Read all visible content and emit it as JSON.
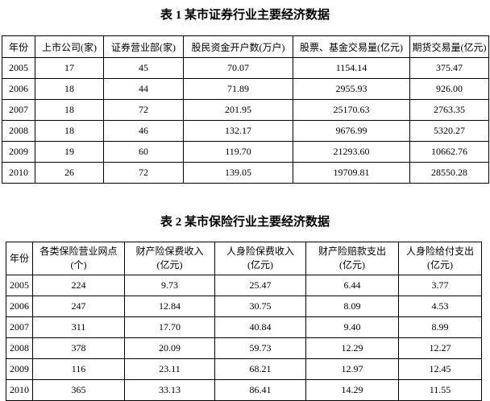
{
  "page": {
    "background_color": "#ffffff",
    "text_color": "#000000",
    "border_color": "#000000"
  },
  "chart_data": [
    {
      "type": "table",
      "title": "表 1 某市证券行业主要经济数据",
      "columns": [
        "年份",
        "上市公司(家)",
        "证券营业部(家)",
        "股民资金开户数(万户)",
        "股票、基金交易量(亿元)",
        "期货交易量(亿元)"
      ],
      "rows": [
        [
          "2005",
          "17",
          "45",
          "70.07",
          "1154.14",
          "375.47"
        ],
        [
          "2006",
          "18",
          "44",
          "71.89",
          "2955.93",
          "926.00"
        ],
        [
          "2007",
          "18",
          "72",
          "201.95",
          "25170.63",
          "2763.35"
        ],
        [
          "2008",
          "18",
          "46",
          "132.17",
          "9676.99",
          "5320.27"
        ],
        [
          "2009",
          "19",
          "60",
          "119.70",
          "21293.60",
          "10662.76"
        ],
        [
          "2010",
          "26",
          "72",
          "139.05",
          "19709.81",
          "28550.28"
        ]
      ]
    },
    {
      "type": "table",
      "title": "表 2 某市保险行业主要经济数据",
      "columns": [
        "年份",
        "各类保险营业网点(个)",
        "财产险保费收入(亿元)",
        "人身险保费收入(亿元)",
        "财产险赔款支出(亿元)",
        "人身险给付支出(亿元)"
      ],
      "rows": [
        [
          "2005",
          "224",
          "9.73",
          "25.47",
          "6.44",
          "3.77"
        ],
        [
          "2006",
          "247",
          "12.84",
          "30.75",
          "8.09",
          "4.53"
        ],
        [
          "2007",
          "311",
          "17.70",
          "40.84",
          "9.40",
          "8.99"
        ],
        [
          "2008",
          "378",
          "20.09",
          "59.73",
          "12.29",
          "12.27"
        ],
        [
          "2009",
          "116",
          "23.11",
          "68.21",
          "12.97",
          "12.45"
        ],
        [
          "2010",
          "365",
          "33.13",
          "86.41",
          "14.29",
          "11.55"
        ]
      ]
    }
  ],
  "table1": {
    "title": "表 1 某市证券行业主要经济数据",
    "headers": [
      "年份",
      "上市公司(家)",
      "证券营业部(家)",
      "股民资金开户数(万户)",
      "股票、基金交易量(亿元)",
      "期货交易量(亿元)"
    ],
    "rows": [
      [
        "2005",
        "17",
        "45",
        "70.07",
        "1154.14",
        "375.47"
      ],
      [
        "2006",
        "18",
        "44",
        "71.89",
        "2955.93",
        "926.00"
      ],
      [
        "2007",
        "18",
        "72",
        "201.95",
        "25170.63",
        "2763.35"
      ],
      [
        "2008",
        "18",
        "46",
        "132.17",
        "9676.99",
        "5320.27"
      ],
      [
        "2009",
        "19",
        "60",
        "119.70",
        "21293.60",
        "10662.76"
      ],
      [
        "2010",
        "26",
        "72",
        "139.05",
        "19709.81",
        "28550.28"
      ]
    ]
  },
  "table2": {
    "title": "表 2 某市保险行业主要经济数据",
    "headers": [
      {
        "line1": "年份",
        "line2": ""
      },
      {
        "line1": "各类保险营业网点",
        "line2": "(个)"
      },
      {
        "line1": "财产险保费收入",
        "line2": "(亿元)"
      },
      {
        "line1": "人身险保费收入",
        "line2": "(亿元)"
      },
      {
        "line1": "财产险赔款支出",
        "line2": "(亿元)"
      },
      {
        "line1": "人身险给付支出",
        "line2": "(亿元)"
      }
    ],
    "rows": [
      [
        "2005",
        "224",
        "9.73",
        "25.47",
        "6.44",
        "3.77"
      ],
      [
        "2006",
        "247",
        "12.84",
        "30.75",
        "8.09",
        "4.53"
      ],
      [
        "2007",
        "311",
        "17.70",
        "40.84",
        "9.40",
        "8.99"
      ],
      [
        "2008",
        "378",
        "20.09",
        "59.73",
        "12.29",
        "12.27"
      ],
      [
        "2009",
        "116",
        "23.11",
        "68.21",
        "12.97",
        "12.45"
      ],
      [
        "2010",
        "365",
        "33.13",
        "86.41",
        "14.29",
        "11.55"
      ]
    ]
  }
}
